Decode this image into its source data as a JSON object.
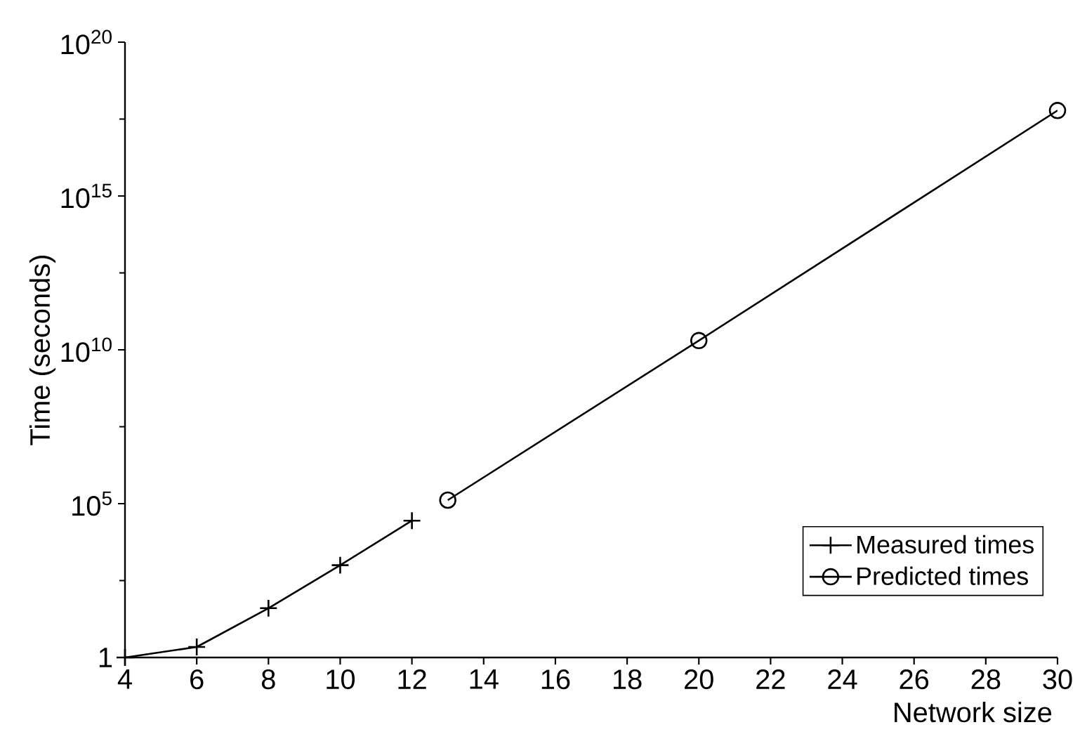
{
  "chart_data": {
    "type": "line",
    "xlabel": "Network size",
    "ylabel": "Time (seconds)",
    "log": "y",
    "xlim": [
      4,
      30
    ],
    "xticks": [
      4,
      6,
      8,
      10,
      12,
      14,
      16,
      18,
      20,
      22,
      24,
      26,
      28,
      30
    ],
    "ylim": [
      1,
      1e+20
    ],
    "yticks": [
      1,
      {
        "value": 100000.0,
        "label": "10$^{5}$"
      },
      {
        "value": 10000000000.0,
        "label": "10$^{10}$"
      },
      {
        "value": 1000000000000000.0,
        "label": "10$^{15}$"
      },
      {
        "value": 1e+20,
        "label": "10$^{20}$"
      }
    ],
    "grid": false,
    "legend": "bottom right",
    "line_style": "solid",
    "series": [
      {
        "name": "Measured times",
        "color": "#000000",
        "marker": "cross",
        "x": [
          4,
          6,
          8,
          10,
          12
        ],
        "values": [
          1,
          2.2,
          40,
          1000,
          28000
        ]
      },
      {
        "name": "Predicted times",
        "color": "#000000",
        "marker": "circle",
        "x": [
          13,
          20,
          30
        ],
        "values": [
          130000,
          20000000000.0,
          6e+17
        ]
      }
    ]
  }
}
